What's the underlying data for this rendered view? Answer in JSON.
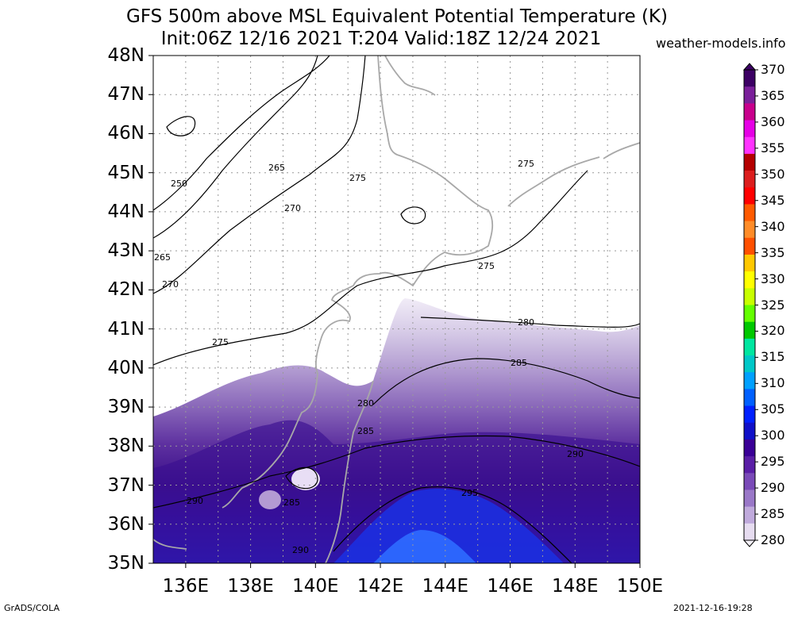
{
  "header": {
    "title": "GFS 500m above MSL Equivalent Potential Temperature (K)",
    "subtitle": "Init:06Z 12/16 2021 T:204 Valid:18Z 12/24 2021",
    "site": "weather-models.info"
  },
  "axes": {
    "lat_labels": [
      "48N",
      "47N",
      "46N",
      "45N",
      "44N",
      "43N",
      "42N",
      "41N",
      "40N",
      "39N",
      "38N",
      "37N",
      "36N",
      "35N"
    ],
    "lon_labels": [
      "136E",
      "138E",
      "140E",
      "142E",
      "144E",
      "146E",
      "148E",
      "150E"
    ]
  },
  "contours": {
    "labels": [
      "250",
      "265",
      "265",
      "270",
      "270",
      "275",
      "275",
      "275",
      "275",
      "280",
      "280",
      "285",
      "285",
      "285",
      "290",
      "290",
      "290",
      "295"
    ]
  },
  "colorbar": {
    "labels": [
      "370",
      "365",
      "360",
      "355",
      "350",
      "345",
      "340",
      "335",
      "330",
      "325",
      "320",
      "315",
      "310",
      "305",
      "300",
      "295",
      "290",
      "285",
      "280"
    ],
    "colors": [
      "#3c0064",
      "#7a1f9a",
      "#c8008c",
      "#e600e6",
      "#ff33ff",
      "#b40000",
      "#dc1e1e",
      "#ff0000",
      "#ff5a00",
      "#ff8c28",
      "#ff5000",
      "#ffc800",
      "#ffff00",
      "#c8ff00",
      "#64ff00",
      "#00c800",
      "#00e6a0",
      "#00c8c8",
      "#00a0ff",
      "#0060ff",
      "#0020ff",
      "#1010c8",
      "#3a0096",
      "#5a1ea6",
      "#7a4ab8",
      "#9a78c8",
      "#c0aadc",
      "#e6dcf0"
    ]
  },
  "footer": {
    "left": "GrADS/COLA",
    "right": "2021-12-16-19:28"
  }
}
